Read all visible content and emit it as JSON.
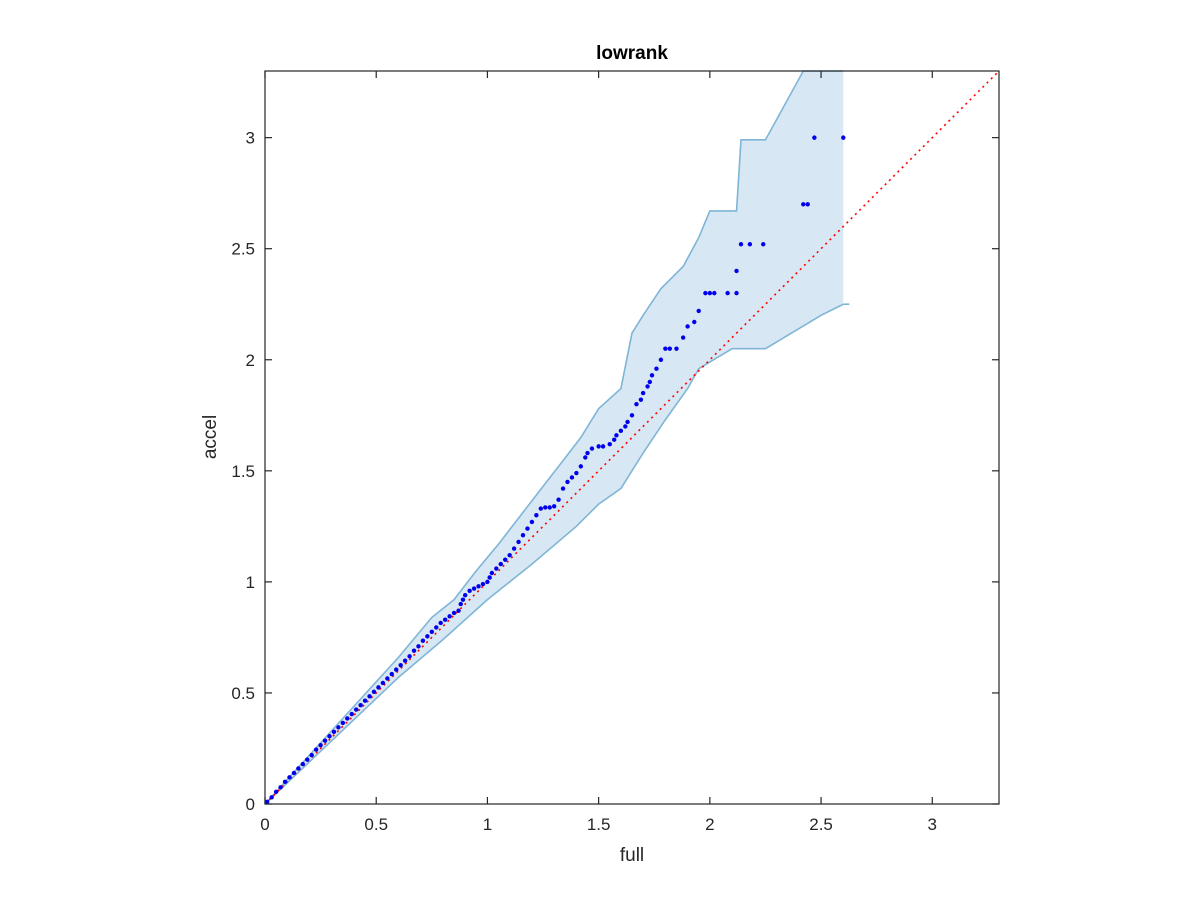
{
  "chart_data": {
    "type": "scatter",
    "title": "lowrank",
    "xlabel": "full",
    "ylabel": "accel",
    "xlim": [
      0,
      3.3
    ],
    "ylim": [
      0,
      3.3
    ],
    "xticks": [
      0,
      0.5,
      1,
      1.5,
      2,
      2.5,
      3
    ],
    "yticks": [
      0,
      0.5,
      1,
      1.5,
      2,
      2.5,
      3
    ],
    "xtick_labels": [
      "0",
      "0.5",
      "1",
      "1.5",
      "2",
      "2.5",
      "3"
    ],
    "ytick_labels": [
      "0",
      "0.5",
      "1",
      "1.5",
      "2",
      "2.5",
      "3"
    ],
    "grid": false,
    "colors": {
      "points": "#0000ee",
      "reference_line": "#ff0000",
      "band_fill": "#d7e7f3",
      "band_edge": "#7fb5d6",
      "axes": "#262626"
    },
    "reference_line": {
      "x": [
        0,
        3.3
      ],
      "y": [
        0,
        3.3
      ],
      "style": "dotted"
    },
    "confidence_band": {
      "upper": [
        [
          0,
          0
        ],
        [
          0.2,
          0.22
        ],
        [
          0.4,
          0.44
        ],
        [
          0.6,
          0.66
        ],
        [
          0.75,
          0.84
        ],
        [
          0.85,
          0.92
        ],
        [
          0.95,
          1.05
        ],
        [
          1.05,
          1.17
        ],
        [
          1.15,
          1.3
        ],
        [
          1.25,
          1.43
        ],
        [
          1.32,
          1.52
        ],
        [
          1.42,
          1.65
        ],
        [
          1.5,
          1.78
        ],
        [
          1.6,
          1.87
        ],
        [
          1.65,
          2.12
        ],
        [
          1.7,
          2.2
        ],
        [
          1.78,
          2.32
        ],
        [
          1.88,
          2.42
        ],
        [
          1.95,
          2.55
        ],
        [
          2.0,
          2.67
        ],
        [
          2.12,
          2.67
        ],
        [
          2.14,
          2.99
        ],
        [
          2.25,
          2.99
        ],
        [
          2.42,
          3.3
        ],
        [
          2.6,
          3.3
        ]
      ],
      "lower": [
        [
          0,
          0
        ],
        [
          0.2,
          0.19
        ],
        [
          0.4,
          0.38
        ],
        [
          0.6,
          0.57
        ],
        [
          0.8,
          0.74
        ],
        [
          1.0,
          0.92
        ],
        [
          1.2,
          1.08
        ],
        [
          1.4,
          1.25
        ],
        [
          1.5,
          1.35
        ],
        [
          1.6,
          1.42
        ],
        [
          1.7,
          1.58
        ],
        [
          1.8,
          1.73
        ],
        [
          1.9,
          1.87
        ],
        [
          1.95,
          1.96
        ],
        [
          2.1,
          2.05
        ],
        [
          2.25,
          2.05
        ],
        [
          2.5,
          2.2
        ],
        [
          2.6,
          2.25
        ]
      ]
    },
    "points": [
      [
        0.01,
        0.01
      ],
      [
        0.03,
        0.03
      ],
      [
        0.05,
        0.055
      ],
      [
        0.07,
        0.075
      ],
      [
        0.09,
        0.1
      ],
      [
        0.11,
        0.12
      ],
      [
        0.13,
        0.14
      ],
      [
        0.15,
        0.16
      ],
      [
        0.17,
        0.18
      ],
      [
        0.19,
        0.2
      ],
      [
        0.21,
        0.22
      ],
      [
        0.23,
        0.245
      ],
      [
        0.25,
        0.265
      ],
      [
        0.27,
        0.285
      ],
      [
        0.29,
        0.305
      ],
      [
        0.31,
        0.325
      ],
      [
        0.33,
        0.345
      ],
      [
        0.35,
        0.365
      ],
      [
        0.37,
        0.385
      ],
      [
        0.39,
        0.405
      ],
      [
        0.41,
        0.425
      ],
      [
        0.43,
        0.445
      ],
      [
        0.45,
        0.465
      ],
      [
        0.47,
        0.485
      ],
      [
        0.49,
        0.505
      ],
      [
        0.51,
        0.525
      ],
      [
        0.53,
        0.545
      ],
      [
        0.55,
        0.565
      ],
      [
        0.57,
        0.585
      ],
      [
        0.59,
        0.605
      ],
      [
        0.61,
        0.625
      ],
      [
        0.63,
        0.645
      ],
      [
        0.65,
        0.665
      ],
      [
        0.67,
        0.69
      ],
      [
        0.69,
        0.71
      ],
      [
        0.71,
        0.735
      ],
      [
        0.73,
        0.755
      ],
      [
        0.75,
        0.775
      ],
      [
        0.77,
        0.795
      ],
      [
        0.79,
        0.815
      ],
      [
        0.81,
        0.83
      ],
      [
        0.83,
        0.845
      ],
      [
        0.85,
        0.86
      ],
      [
        0.87,
        0.87
      ],
      [
        0.88,
        0.9
      ],
      [
        0.89,
        0.92
      ],
      [
        0.9,
        0.94
      ],
      [
        0.92,
        0.96
      ],
      [
        0.94,
        0.97
      ],
      [
        0.96,
        0.98
      ],
      [
        0.98,
        0.99
      ],
      [
        1.0,
        1.0
      ],
      [
        1.01,
        1.02
      ],
      [
        1.02,
        1.04
      ],
      [
        1.04,
        1.06
      ],
      [
        1.06,
        1.08
      ],
      [
        1.08,
        1.1
      ],
      [
        1.1,
        1.12
      ],
      [
        1.12,
        1.15
      ],
      [
        1.14,
        1.18
      ],
      [
        1.16,
        1.21
      ],
      [
        1.18,
        1.24
      ],
      [
        1.2,
        1.27
      ],
      [
        1.22,
        1.3
      ],
      [
        1.24,
        1.33
      ],
      [
        1.26,
        1.335
      ],
      [
        1.28,
        1.335
      ],
      [
        1.3,
        1.34
      ],
      [
        1.32,
        1.37
      ],
      [
        1.34,
        1.42
      ],
      [
        1.36,
        1.45
      ],
      [
        1.38,
        1.47
      ],
      [
        1.4,
        1.49
      ],
      [
        1.42,
        1.52
      ],
      [
        1.44,
        1.56
      ],
      [
        1.45,
        1.58
      ],
      [
        1.47,
        1.6
      ],
      [
        1.5,
        1.61
      ],
      [
        1.52,
        1.61
      ],
      [
        1.55,
        1.62
      ],
      [
        1.57,
        1.64
      ],
      [
        1.58,
        1.66
      ],
      [
        1.6,
        1.68
      ],
      [
        1.62,
        1.7
      ],
      [
        1.63,
        1.72
      ],
      [
        1.65,
        1.75
      ],
      [
        1.67,
        1.8
      ],
      [
        1.69,
        1.82
      ],
      [
        1.7,
        1.85
      ],
      [
        1.72,
        1.88
      ],
      [
        1.73,
        1.9
      ],
      [
        1.74,
        1.93
      ],
      [
        1.76,
        1.96
      ],
      [
        1.78,
        2.0
      ],
      [
        1.8,
        2.05
      ],
      [
        1.82,
        2.05
      ],
      [
        1.85,
        2.05
      ],
      [
        1.88,
        2.1
      ],
      [
        1.9,
        2.15
      ],
      [
        1.93,
        2.17
      ],
      [
        1.95,
        2.22
      ],
      [
        1.98,
        2.3
      ],
      [
        2.0,
        2.3
      ],
      [
        2.02,
        2.3
      ],
      [
        2.08,
        2.3
      ],
      [
        2.12,
        2.3
      ],
      [
        2.12,
        2.4
      ],
      [
        2.14,
        2.52
      ],
      [
        2.18,
        2.52
      ],
      [
        2.24,
        2.52
      ],
      [
        2.42,
        2.7
      ],
      [
        2.44,
        2.7
      ],
      [
        2.47,
        3.0
      ],
      [
        2.6,
        3.0
      ]
    ]
  }
}
